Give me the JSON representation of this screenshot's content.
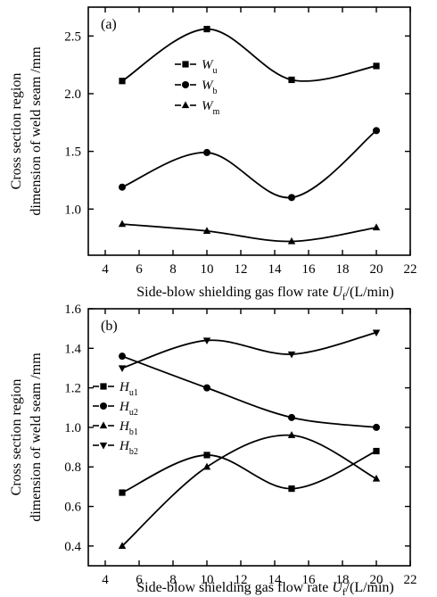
{
  "chart_data": [
    {
      "panel": "(a)",
      "type": "line",
      "x": [
        5,
        10,
        15,
        20
      ],
      "xlabel": {
        "main": "Side-blow shielding gas flow rate ",
        "var": "U",
        "sub": "f",
        "unit": "/(L/min)"
      },
      "ylabel": [
        "Cross section region",
        "dimension of weld seam /mm"
      ],
      "xlim": [
        3,
        22
      ],
      "ylim": [
        0.6,
        2.75
      ],
      "xticks": [
        4,
        6,
        8,
        10,
        12,
        14,
        16,
        18,
        20,
        22
      ],
      "xtick_labels": [
        "4",
        "6",
        "8",
        "10",
        "12",
        "14",
        "16",
        "18",
        "20",
        "22"
      ],
      "yticks": [
        1.0,
        1.5,
        2.0,
        2.5
      ],
      "ytick_labels": [
        "1.0",
        "1.5",
        "2.0",
        "2.5"
      ],
      "legend_position": "top-center",
      "series": [
        {
          "var": "W",
          "sub": "u",
          "marker": "square",
          "values": [
            2.11,
            2.56,
            2.12,
            2.24
          ]
        },
        {
          "var": "W",
          "sub": "b",
          "marker": "circle",
          "values": [
            1.19,
            1.49,
            1.1,
            1.68
          ]
        },
        {
          "var": "W",
          "sub": "m",
          "marker": "triangle-up",
          "values": [
            0.87,
            0.81,
            0.72,
            0.84
          ]
        }
      ]
    },
    {
      "panel": "(b)",
      "type": "line",
      "x": [
        5,
        10,
        15,
        20
      ],
      "xlabel": {
        "main": "Side-blow shielding gas flow rate ",
        "var": "U",
        "sub": "f",
        "unit": "/(L/min)"
      },
      "ylabel": [
        "Cross section region",
        "dimension of weld seam /mm"
      ],
      "xlim": [
        3,
        22
      ],
      "ylim": [
        0.3,
        1.6
      ],
      "xticks": [
        4,
        6,
        8,
        10,
        12,
        14,
        16,
        18,
        20,
        22
      ],
      "xtick_labels": [
        "4",
        "6",
        "8",
        "10",
        "12",
        "14",
        "16",
        "18",
        "20",
        "22"
      ],
      "yticks": [
        0.4,
        0.6,
        0.8,
        1.0,
        1.2,
        1.4,
        1.6
      ],
      "ytick_labels": [
        "0.4",
        "0.6",
        "0.8",
        "1.0",
        "1.2",
        "1.4",
        "1.6"
      ],
      "legend_position": "center-left",
      "series": [
        {
          "var": "H",
          "sub": "u1",
          "marker": "square",
          "values": [
            0.67,
            0.86,
            0.69,
            0.88
          ]
        },
        {
          "var": "H",
          "sub": "u2",
          "marker": "circle",
          "values": [
            1.36,
            1.2,
            1.05,
            1.0
          ]
        },
        {
          "var": "H",
          "sub": "b1",
          "marker": "triangle-up",
          "values": [
            0.4,
            0.8,
            0.96,
            0.74
          ]
        },
        {
          "var": "H",
          "sub": "b2",
          "marker": "triangle-down",
          "values": [
            1.3,
            1.44,
            1.37,
            1.48
          ]
        }
      ]
    }
  ]
}
